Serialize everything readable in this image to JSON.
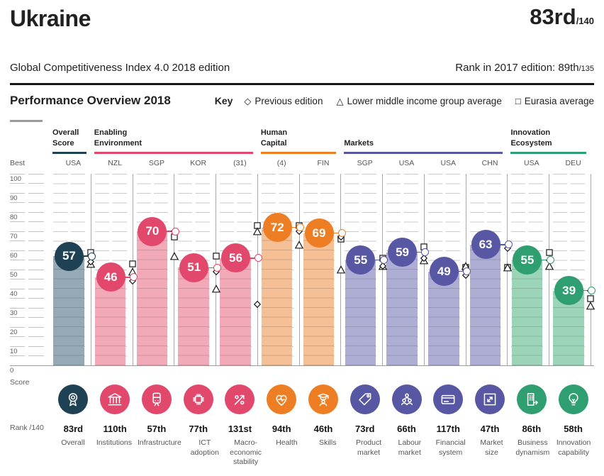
{
  "header": {
    "country": "Ukraine",
    "rank": "83rd",
    "rank_of": "/140",
    "edition": "Global Competitiveness Index 4.0 2018 edition",
    "prev_rank_text": "Rank in 2017 edition: 89th",
    "prev_rank_of": "/135"
  },
  "overview": {
    "title": "Performance Overview 2018",
    "key_label": "Key",
    "legend": [
      {
        "symbol": "◇",
        "label": "Previous edition"
      },
      {
        "symbol": "△",
        "label": "Lower middle income group average"
      },
      {
        "symbol": "□",
        "label": "Eurasia average"
      }
    ]
  },
  "axis": {
    "best_label": "Best",
    "score_label": "Score",
    "rank_label": "Rank /140",
    "ticks": [
      "100",
      "90",
      "80",
      "70",
      "60",
      "50",
      "40",
      "30",
      "20",
      "10",
      "0"
    ],
    "ylim": [
      0,
      100
    ]
  },
  "groups": [
    {
      "label": "Overall\nScore",
      "span": 1
    },
    {
      "label": "Enabling\nEnvironment",
      "span": 4
    },
    {
      "label": "Human\nCapital",
      "span": 2
    },
    {
      "label": "Markets",
      "span": 4
    },
    {
      "label": "Innovation\nEcosystem",
      "span": 2
    }
  ],
  "colors": {
    "groups": [
      {
        "main": "#1e4254",
        "bar": "#95aab4"
      },
      {
        "main": "#e2486b",
        "bar": "#f2aab9"
      },
      {
        "main": "#ee7e23",
        "bar": "#f5c095"
      },
      {
        "main": "#5757a3",
        "bar": "#aeaed4"
      },
      {
        "main": "#2f9e71",
        "bar": "#9cd4b9"
      }
    ],
    "marker_stroke": "#1a1a1a",
    "gridline": "#cacaca"
  },
  "chart_data": {
    "type": "bar",
    "title": "Performance Overview 2018",
    "ylabel": "Score",
    "ylim": [
      0,
      100
    ],
    "grid": "dashed horizontal every 5",
    "legend_series": [
      "Score",
      "Previous edition",
      "Lower middle income group average",
      "Eurasia average"
    ],
    "columns": [
      {
        "pillar": "Overall",
        "best": "USA",
        "score": 57,
        "previous": 54,
        "income_group_avg": 53,
        "eurasia_avg": 59,
        "rank": "83rd",
        "group": 0,
        "icon": "award-icon"
      },
      {
        "pillar": "Institutions",
        "best": "NZL",
        "score": 46,
        "previous": 44,
        "income_group_avg": 49,
        "eurasia_avg": 53,
        "rank": "110th",
        "group": 1,
        "icon": "bank-icon"
      },
      {
        "pillar": "Infrastructure",
        "best": "SGP",
        "score": 70,
        "previous": 70,
        "income_group_avg": 57,
        "eurasia_avg": 67,
        "rank": "57th",
        "group": 1,
        "icon": "train-icon"
      },
      {
        "pillar": "ICT adoption",
        "best": "KOR",
        "score": 51,
        "previous": 49,
        "income_group_avg": 40,
        "eurasia_avg": 57,
        "rank": "77th",
        "group": 1,
        "icon": "chip-icon"
      },
      {
        "pillar": "Macro-economic stability",
        "best": "(31)",
        "score": 56,
        "previous": 32,
        "income_group_avg": 70,
        "eurasia_avg": 73,
        "rank": "131st",
        "group": 1,
        "icon": "percent-arrow-icon"
      },
      {
        "pillar": "Health",
        "best": "(4)",
        "score": 72,
        "previous": 70,
        "income_group_avg": 63,
        "eurasia_avg": 73,
        "rank": "94th",
        "group": 2,
        "icon": "heart-pulse-icon"
      },
      {
        "pillar": "Skills",
        "best": "FIN",
        "score": 69,
        "previous": 67,
        "income_group_avg": 50,
        "eurasia_avg": 66,
        "rank": "46th",
        "group": 2,
        "icon": "graduate-icon"
      },
      {
        "pillar": "Product market",
        "best": "SGP",
        "score": 55,
        "previous": 52,
        "income_group_avg": 52,
        "eurasia_avg": 56,
        "rank": "73rd",
        "group": 3,
        "icon": "tag-icon"
      },
      {
        "pillar": "Labour market",
        "best": "USA",
        "score": 59,
        "previous": 56,
        "income_group_avg": 55,
        "eurasia_avg": 62,
        "rank": "66th",
        "group": 3,
        "icon": "people-icon"
      },
      {
        "pillar": "Financial system",
        "best": "USA",
        "score": 49,
        "previous": 47,
        "income_group_avg": 52,
        "eurasia_avg": 51,
        "rank": "117th",
        "group": 3,
        "icon": "credit-card-icon"
      },
      {
        "pillar": "Market size",
        "best": "CHN",
        "score": 63,
        "previous": 61,
        "income_group_avg": 51,
        "eurasia_avg": 51,
        "rank": "47th",
        "group": 3,
        "icon": "expand-icon"
      },
      {
        "pillar": "Business dynamism",
        "best": "USA",
        "score": 55,
        "previous": 55,
        "income_group_avg": 52,
        "eurasia_avg": 59,
        "rank": "86th",
        "group": 4,
        "icon": "building-arrow-icon"
      },
      {
        "pillar": "Innovation capability",
        "best": "DEU",
        "score": 39,
        "previous": 39,
        "income_group_avg": 31,
        "eurasia_avg": 35,
        "rank": "58th",
        "group": 4,
        "icon": "lightbulb-icon"
      }
    ]
  }
}
